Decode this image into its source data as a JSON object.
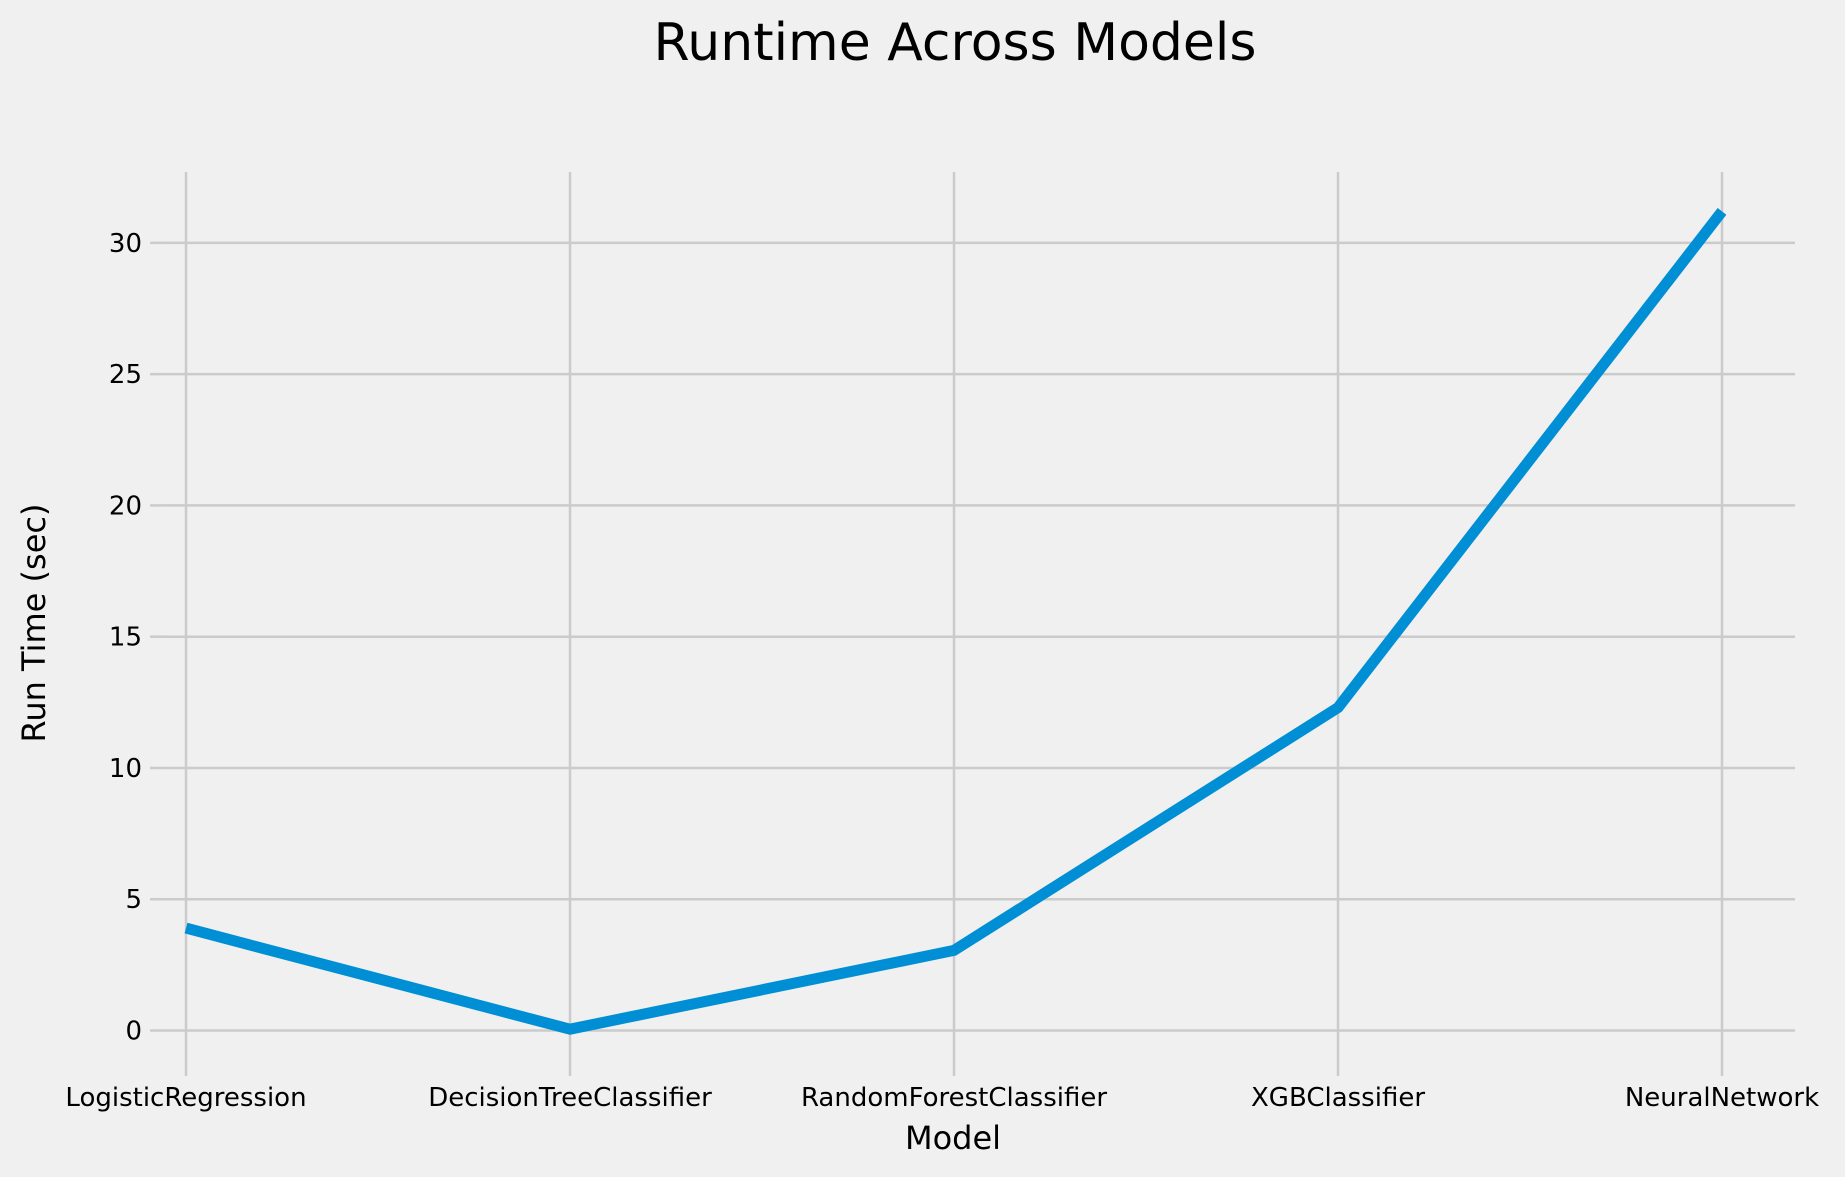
{
  "chart_data": {
    "type": "line",
    "title": "Runtime Across Models",
    "xlabel": "Model",
    "ylabel": "Run Time (sec)",
    "categories": [
      "LogisticRegression",
      "DecisionTreeClassifier",
      "RandomForestClassifier",
      "XGBClassifier",
      "NeuralNetwork"
    ],
    "series": [
      {
        "values": [
          3.9,
          0.05,
          3.05,
          12.3,
          31.2
        ],
        "color": "#008fd5"
      }
    ],
    "yticks": [
      0,
      5,
      10,
      15,
      20,
      25,
      30
    ],
    "ylim": [
      -1.2,
      32.7
    ],
    "grid": true,
    "legend": "none"
  }
}
